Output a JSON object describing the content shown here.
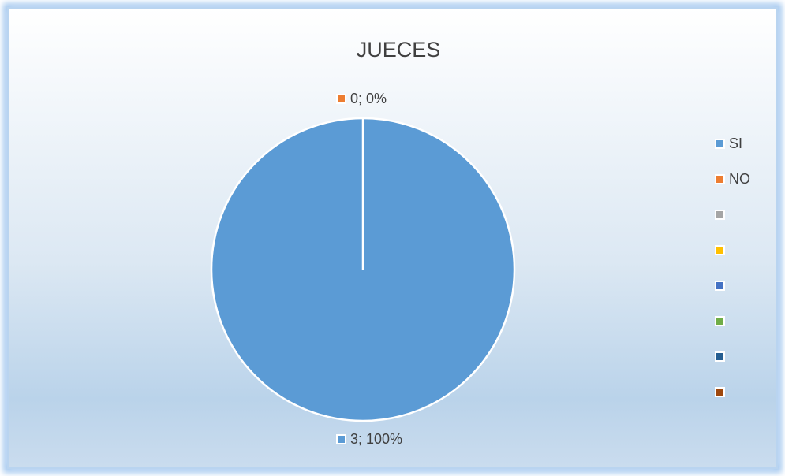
{
  "chart_data": {
    "type": "pie",
    "title": "JUECES",
    "categories": [
      "SI",
      "NO",
      null,
      null,
      null,
      null,
      null,
      null
    ],
    "values": [
      3,
      0,
      null,
      null,
      null,
      null,
      null,
      null
    ],
    "value_labels": [
      "3; 100%",
      "0; 0%",
      null,
      null,
      null,
      null,
      null,
      null
    ],
    "colors": [
      "#5b9bd5",
      "#ed7d31",
      "#a5a5a5",
      "#ffc000",
      "#4472c4",
      "#70ad47",
      "#255e91",
      "#9e480e"
    ],
    "legend": "right"
  }
}
